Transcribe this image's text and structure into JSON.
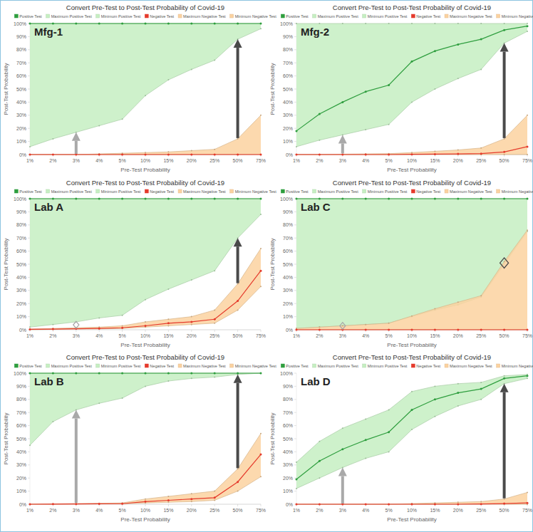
{
  "chart_data": [
    {
      "type": "line",
      "title": "Convert Pre-Test to Post-Test Probability of Covid-19",
      "annotation": "Mfg-1",
      "x_label": "Pre-Test Probability",
      "y_label": "Post-Test Probability",
      "categories": [
        "1%",
        "2%",
        "3%",
        "4%",
        "5%",
        "10%",
        "15%",
        "20%",
        "25%",
        "50%",
        "75%"
      ],
      "ylim": [
        0,
        100
      ],
      "yticks": [
        {
          "value": 0,
          "label": "0%"
        },
        {
          "value": 10,
          "label": "10%"
        },
        {
          "value": 20,
          "label": "20%"
        },
        {
          "value": 30,
          "label": "30%"
        },
        {
          "value": 40,
          "label": "40%"
        },
        {
          "value": 50,
          "label": "50%"
        },
        {
          "value": 60,
          "label": "60%"
        },
        {
          "value": 70,
          "label": "70%"
        },
        {
          "value": 80,
          "label": "80%"
        },
        {
          "value": 90,
          "label": "90%"
        },
        {
          "value": 100,
          "label": "100%"
        }
      ],
      "grid": false,
      "legend": "top",
      "series": [
        {
          "name": "Positive Test",
          "type": "line",
          "color": "#2f9e3f",
          "marker": "circle",
          "values": [
            100,
            100,
            100,
            100,
            100,
            100,
            100,
            100,
            100,
            100,
            100
          ]
        },
        {
          "name": "Maximum Positive Test",
          "type": "area",
          "color": "#c6efc2",
          "values": [
            100,
            100,
            100,
            100,
            100,
            100,
            100,
            100,
            100,
            100,
            100
          ]
        },
        {
          "name": "Minimum Positive Test",
          "type": "area",
          "color": "#c6efc2",
          "values": [
            6,
            12,
            17,
            22,
            27,
            45,
            57,
            65,
            72,
            88,
            96
          ]
        },
        {
          "name": "Negative Test",
          "type": "line",
          "color": "#e53b2c",
          "marker": "circle",
          "values": [
            0,
            0,
            0,
            0,
            0,
            0,
            0,
            0,
            0,
            0,
            0
          ]
        },
        {
          "name": "Maximum Negative Test",
          "type": "area",
          "color": "#fbd2a0",
          "values": [
            0,
            0,
            0,
            0.5,
            1,
            1.5,
            2,
            3,
            4,
            12,
            30
          ]
        },
        {
          "name": "Minimum Negative Test",
          "type": "area",
          "color": "#fbd2a0",
          "values": [
            0,
            0,
            0,
            0,
            0,
            0,
            0,
            0,
            0,
            0,
            0
          ]
        }
      ]
    },
    {
      "type": "line",
      "title": "Convert Pre-Test to Post-Test Probability of Covid-19",
      "annotation": "Mfg-2",
      "x_label": "Pre-Test Probability",
      "y_label": "Post-Test Probability",
      "categories": [
        "1%",
        "2%",
        "3%",
        "4%",
        "5%",
        "10%",
        "15%",
        "20%",
        "25%",
        "50%",
        "75%"
      ],
      "ylim": [
        0,
        100
      ],
      "yticks": [
        {
          "value": 0,
          "label": "0%"
        },
        {
          "value": 10,
          "label": "10%"
        },
        {
          "value": 20,
          "label": "20%"
        },
        {
          "value": 30,
          "label": "30%"
        },
        {
          "value": 40,
          "label": "40%"
        },
        {
          "value": 50,
          "label": "50%"
        },
        {
          "value": 60,
          "label": "60%"
        },
        {
          "value": 70,
          "label": "70%"
        },
        {
          "value": 80,
          "label": "80%"
        },
        {
          "value": 90,
          "label": "90%"
        },
        {
          "value": 100,
          "label": "100%"
        }
      ],
      "grid": false,
      "legend": "top",
      "series": [
        {
          "name": "Positive Test",
          "type": "line",
          "color": "#2f9e3f",
          "marker": "circle",
          "values": [
            18,
            31,
            40,
            48,
            53,
            71,
            79,
            84,
            88,
            95,
            98
          ]
        },
        {
          "name": "Maximum Positive Test",
          "type": "area",
          "color": "#c6efc2",
          "values": [
            100,
            100,
            100,
            100,
            100,
            100,
            100,
            100,
            100,
            100,
            100
          ]
        },
        {
          "name": "Minimum Positive Test",
          "type": "area",
          "color": "#c6efc2",
          "values": [
            6,
            11,
            15,
            19,
            23,
            40,
            50,
            58,
            65,
            85,
            94
          ]
        },
        {
          "name": "Negative Test",
          "type": "line",
          "color": "#e53b2c",
          "marker": "circle",
          "values": [
            0,
            0,
            0,
            0,
            0,
            0.2,
            0.3,
            0.5,
            0.7,
            2,
            6
          ]
        },
        {
          "name": "Maximum Negative Test",
          "type": "area",
          "color": "#fbd2a0",
          "values": [
            0,
            0,
            0.3,
            0.5,
            0.7,
            1.5,
            2.5,
            3.5,
            5,
            12,
            30
          ]
        },
        {
          "name": "Minimum Negative Test",
          "type": "area",
          "color": "#fbd2a0",
          "values": [
            0,
            0,
            0,
            0,
            0,
            0,
            0,
            0,
            0,
            0,
            0
          ]
        }
      ]
    },
    {
      "type": "line",
      "title": "Convert Pre-Test to Post-Test Probability of Covid-19",
      "annotation": "Lab A",
      "x_label": "Pre-Test Probability",
      "y_label": "Post-Test Probability",
      "categories": [
        "1%",
        "2%",
        "3%",
        "4%",
        "5%",
        "10%",
        "15%",
        "20%",
        "25%",
        "50%",
        "75%"
      ],
      "ylim": [
        0,
        100
      ],
      "yticks": [
        {
          "value": 0,
          "label": "0%"
        },
        {
          "value": 10,
          "label": "10%"
        },
        {
          "value": 20,
          "label": "20%"
        },
        {
          "value": 30,
          "label": "30%"
        },
        {
          "value": 40,
          "label": "40%"
        },
        {
          "value": 50,
          "label": "50%"
        },
        {
          "value": 60,
          "label": "60%"
        },
        {
          "value": 70,
          "label": "70%"
        },
        {
          "value": 80,
          "label": "80%"
        },
        {
          "value": 90,
          "label": "90%"
        },
        {
          "value": 100,
          "label": "100%"
        }
      ],
      "grid": false,
      "legend": "top",
      "series": [
        {
          "name": "Positive Test",
          "type": "line",
          "color": "#2f9e3f",
          "marker": "circle",
          "values": [
            100,
            100,
            100,
            100,
            100,
            100,
            100,
            100,
            100,
            100,
            100
          ]
        },
        {
          "name": "Maximum Positive Test",
          "type": "area",
          "color": "#c6efc2",
          "values": [
            100,
            100,
            100,
            100,
            100,
            100,
            100,
            100,
            100,
            100,
            100
          ]
        },
        {
          "name": "Minimum Positive Test",
          "type": "area",
          "color": "#c6efc2",
          "values": [
            2,
            4,
            6,
            9,
            11,
            23,
            31,
            38,
            45,
            70,
            88
          ]
        },
        {
          "name": "Negative Test",
          "type": "line",
          "color": "#e53b2c",
          "marker": "circle",
          "values": [
            0.3,
            0.5,
            0.8,
            1,
            1.5,
            3,
            5,
            6,
            8,
            22,
            45
          ]
        },
        {
          "name": "Maximum Negative Test",
          "type": "area",
          "color": "#fbd2a0",
          "values": [
            0.5,
            1,
            1.5,
            2,
            3,
            6,
            8,
            10,
            15,
            35,
            62
          ]
        },
        {
          "name": "Minimum Negative Test",
          "type": "area",
          "color": "#fbd2a0",
          "values": [
            0,
            0.3,
            0.5,
            0.6,
            1,
            2,
            3,
            4,
            5,
            15,
            33
          ]
        }
      ]
    },
    {
      "type": "line",
      "title": "Convert Pre-Test to Post-Test Probability of Covid-19",
      "annotation": "Lab C",
      "x_label": "Pre-Test Probability",
      "y_label": "Post-Test Probability",
      "categories": [
        "1%",
        "2%",
        "3%",
        "4%",
        "5%",
        "10%",
        "15%",
        "20%",
        "25%",
        "50%",
        "75%"
      ],
      "ylim": [
        0,
        100
      ],
      "yticks": [
        {
          "value": 0,
          "label": "0%"
        },
        {
          "value": 10,
          "label": "10%"
        },
        {
          "value": 20,
          "label": "20%"
        },
        {
          "value": 30,
          "label": "30%"
        },
        {
          "value": 40,
          "label": "40%"
        },
        {
          "value": 50,
          "label": "50%"
        },
        {
          "value": 60,
          "label": "60%"
        },
        {
          "value": 70,
          "label": "70%"
        },
        {
          "value": 80,
          "label": "80%"
        },
        {
          "value": 90,
          "label": "90%"
        },
        {
          "value": 100,
          "label": "100%"
        }
      ],
      "grid": false,
      "legend": "top",
      "series": [
        {
          "name": "Positive Test",
          "type": "line",
          "color": "#2f9e3f",
          "marker": "circle",
          "values": [
            100,
            100,
            100,
            100,
            100,
            100,
            100,
            100,
            100,
            100,
            100
          ]
        },
        {
          "name": "Maximum Positive Test",
          "type": "area",
          "color": "#c6efc2",
          "values": [
            100,
            100,
            100,
            100,
            100,
            100,
            100,
            100,
            100,
            100,
            100
          ]
        },
        {
          "name": "Minimum Positive Test",
          "type": "area",
          "color": "#c6efc2",
          "values": [
            1,
            2,
            3,
            4,
            5,
            10,
            15,
            19,
            25,
            50,
            75
          ]
        },
        {
          "name": "Negative Test",
          "type": "line",
          "color": "#e53b2c",
          "marker": "circle",
          "values": [
            0,
            0,
            0,
            0,
            0,
            0,
            0,
            0,
            0,
            0,
            0
          ]
        },
        {
          "name": "Maximum Negative Test",
          "type": "area",
          "color": "#fbd2a0",
          "values": [
            1,
            2,
            3,
            4,
            5,
            10.5,
            16,
            21,
            26,
            52,
            76
          ]
        },
        {
          "name": "Minimum Negative Test",
          "type": "area",
          "color": "#fbd2a0",
          "values": [
            0,
            0,
            0,
            0,
            0,
            0,
            0,
            0,
            0,
            0,
            0
          ]
        }
      ]
    },
    {
      "type": "line",
      "title": "Convert Pre-Test to Post-Test Probability of Covid-19",
      "annotation": "Lab B",
      "x_label": "Pre-Test Probability",
      "y_label": "Post-Test Probability",
      "categories": [
        "1%",
        "2%",
        "3%",
        "4%",
        "5%",
        "10%",
        "15%",
        "20%",
        "25%",
        "50%",
        "75%"
      ],
      "ylim": [
        0,
        100
      ],
      "yticks": [
        {
          "value": 0,
          "label": "0%"
        },
        {
          "value": 10,
          "label": "10%"
        },
        {
          "value": 20,
          "label": "20%"
        },
        {
          "value": 30,
          "label": "30%"
        },
        {
          "value": 40,
          "label": "40%"
        },
        {
          "value": 50,
          "label": "50%"
        },
        {
          "value": 60,
          "label": "60%"
        },
        {
          "value": 70,
          "label": "70%"
        },
        {
          "value": 80,
          "label": "80%"
        },
        {
          "value": 90,
          "label": "90%"
        },
        {
          "value": 100,
          "label": "100%"
        }
      ],
      "grid": false,
      "legend": "top",
      "series": [
        {
          "name": "Positive Test",
          "type": "line",
          "color": "#2f9e3f",
          "marker": "circle",
          "values": [
            100,
            100,
            100,
            100,
            100,
            100,
            100,
            100,
            100,
            100,
            100
          ]
        },
        {
          "name": "Maximum Positive Test",
          "type": "area",
          "color": "#c6efc2",
          "values": [
            100,
            100,
            100,
            100,
            100,
            100,
            100,
            100,
            100,
            100,
            100
          ]
        },
        {
          "name": "Minimum Positive Test",
          "type": "area",
          "color": "#c6efc2",
          "values": [
            45,
            63,
            72,
            77,
            81,
            90,
            94,
            96,
            97,
            99,
            100
          ]
        },
        {
          "name": "Negative Test",
          "type": "line",
          "color": "#e53b2c",
          "marker": "circle",
          "values": [
            0,
            0.1,
            0.2,
            0.3,
            0.4,
            2,
            3,
            4,
            5,
            17,
            38
          ]
        },
        {
          "name": "Maximum Negative Test",
          "type": "area",
          "color": "#fbd2a0",
          "values": [
            0.1,
            0.3,
            0.5,
            0.7,
            1,
            4,
            6,
            8,
            10,
            27,
            54
          ]
        },
        {
          "name": "Minimum Negative Test",
          "type": "area",
          "color": "#fbd2a0",
          "values": [
            0,
            0,
            0.1,
            0.2,
            0.3,
            1,
            1.5,
            2,
            3,
            10,
            21
          ]
        }
      ]
    },
    {
      "type": "line",
      "title": "Convert Pre-Test to Post-Test Probability of Covid-19",
      "annotation": "Lab D",
      "x_label": "Pre-Test Probability",
      "y_label": "Post-Test Probability",
      "categories": [
        "1%",
        "2%",
        "3%",
        "4%",
        "5%",
        "10%",
        "15%",
        "20%",
        "25%",
        "50%",
        "75%"
      ],
      "ylim": [
        0,
        100
      ],
      "yticks": [
        {
          "value": 0,
          "label": "0%"
        },
        {
          "value": 10,
          "label": "10%"
        },
        {
          "value": 20,
          "label": "20%"
        },
        {
          "value": 30,
          "label": "30%"
        },
        {
          "value": 40,
          "label": "40%"
        },
        {
          "value": 50,
          "label": "50%"
        },
        {
          "value": 60,
          "label": "60%"
        },
        {
          "value": 70,
          "label": "70%"
        },
        {
          "value": 80,
          "label": "80%"
        },
        {
          "value": 90,
          "label": "90%"
        },
        {
          "value": 100,
          "label": "100%"
        }
      ],
      "grid": false,
      "legend": "top",
      "series": [
        {
          "name": "Positive Test",
          "type": "line",
          "color": "#2f9e3f",
          "marker": "circle",
          "values": [
            19,
            33,
            42,
            49,
            55,
            72,
            80,
            85,
            88,
            96,
            98
          ]
        },
        {
          "name": "Maximum Positive Test",
          "type": "area",
          "color": "#c6efc2",
          "values": [
            32,
            48,
            58,
            65,
            72,
            86,
            90,
            92,
            93,
            98,
            99
          ]
        },
        {
          "name": "Minimum Positive Test",
          "type": "area",
          "color": "#c6efc2",
          "values": [
            12,
            20,
            28,
            35,
            40,
            57,
            67,
            75,
            80,
            92,
            96
          ]
        },
        {
          "name": "Negative Test",
          "type": "line",
          "color": "#e53b2c",
          "marker": "circle",
          "values": [
            0,
            0,
            0,
            0,
            0,
            0,
            0,
            0,
            0.2,
            0.5,
            1
          ]
        },
        {
          "name": "Maximum Negative Test",
          "type": "area",
          "color": "#fbd2a0",
          "values": [
            0,
            0,
            0,
            0,
            0,
            0.5,
            1,
            1.5,
            2,
            4,
            9
          ]
        },
        {
          "name": "Minimum Negative Test",
          "type": "area",
          "color": "#fbd2a0",
          "values": [
            0,
            0,
            0,
            0,
            0,
            0,
            0,
            0,
            0,
            0,
            0
          ]
        }
      ]
    }
  ]
}
